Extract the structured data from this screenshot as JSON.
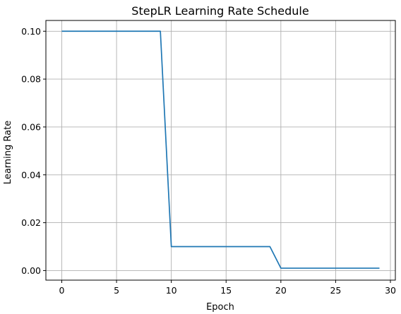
{
  "chart_data": {
    "type": "line",
    "title": "StepLR Learning Rate Schedule",
    "xlabel": "Epoch",
    "ylabel": "Learning Rate",
    "xlim": [
      -1.45,
      30.45
    ],
    "ylim": [
      -0.004,
      0.1045
    ],
    "xticks": [
      0,
      5,
      10,
      15,
      20,
      25,
      30
    ],
    "xtick_labels": [
      "0",
      "5",
      "10",
      "15",
      "20",
      "25",
      "30"
    ],
    "yticks": [
      0.0,
      0.02,
      0.04,
      0.06,
      0.08,
      0.1
    ],
    "ytick_labels": [
      "0.00",
      "0.02",
      "0.04",
      "0.06",
      "0.08",
      "0.10"
    ],
    "grid": true,
    "series": [
      {
        "color": "#1f77b4",
        "x": [
          0,
          1,
          2,
          3,
          4,
          5,
          6,
          7,
          8,
          9,
          10,
          11,
          12,
          13,
          14,
          15,
          16,
          17,
          18,
          19,
          20,
          21,
          22,
          23,
          24,
          25,
          26,
          27,
          28,
          29
        ],
        "y": [
          0.1,
          0.1,
          0.1,
          0.1,
          0.1,
          0.1,
          0.1,
          0.1,
          0.1,
          0.1,
          0.01,
          0.01,
          0.01,
          0.01,
          0.01,
          0.01,
          0.01,
          0.01,
          0.01,
          0.01,
          0.001,
          0.001,
          0.001,
          0.001,
          0.001,
          0.001,
          0.001,
          0.001,
          0.001,
          0.001
        ]
      }
    ]
  }
}
